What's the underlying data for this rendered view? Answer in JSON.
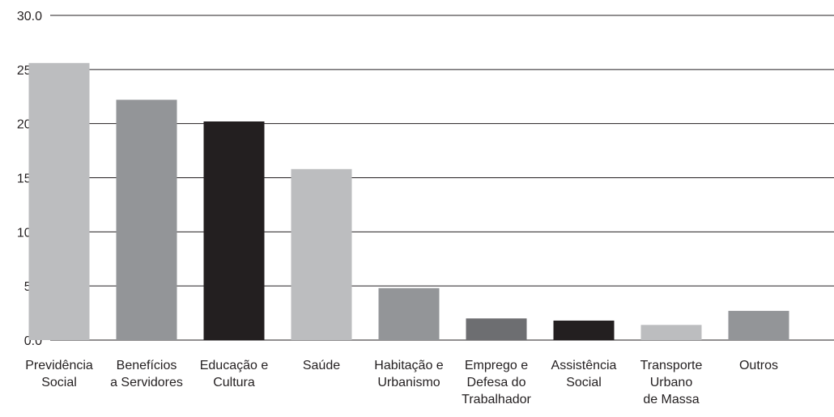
{
  "chart_data": {
    "type": "bar",
    "title": "",
    "xlabel": "",
    "ylabel": "",
    "ylim": [
      0,
      30
    ],
    "yticks": [
      "0.0",
      "5.0",
      "10.0",
      "15.0",
      "20.0",
      "25.0",
      "30.0"
    ],
    "grid": true,
    "legend": "none",
    "categories": [
      [
        "Previdência",
        "Social"
      ],
      [
        "Benefícios",
        "a Servidores"
      ],
      [
        "Educação e",
        "Cultura"
      ],
      [
        "Saúde"
      ],
      [
        "Habitação e",
        "Urbanismo"
      ],
      [
        "Emprego e",
        "Defesa do",
        "Trabalhador"
      ],
      [
        "Assistência",
        "Social"
      ],
      [
        "Transporte",
        "Urbano",
        "de Massa"
      ],
      [
        "Outros"
      ]
    ],
    "values": [
      25.6,
      22.2,
      20.2,
      15.8,
      4.8,
      2.0,
      1.8,
      1.4,
      2.7
    ],
    "colors": [
      "#bcbdbf",
      "#939598",
      "#231f20",
      "#bcbdbf",
      "#939598",
      "#6d6e71",
      "#231f20",
      "#bcbdbf",
      "#939598"
    ]
  }
}
